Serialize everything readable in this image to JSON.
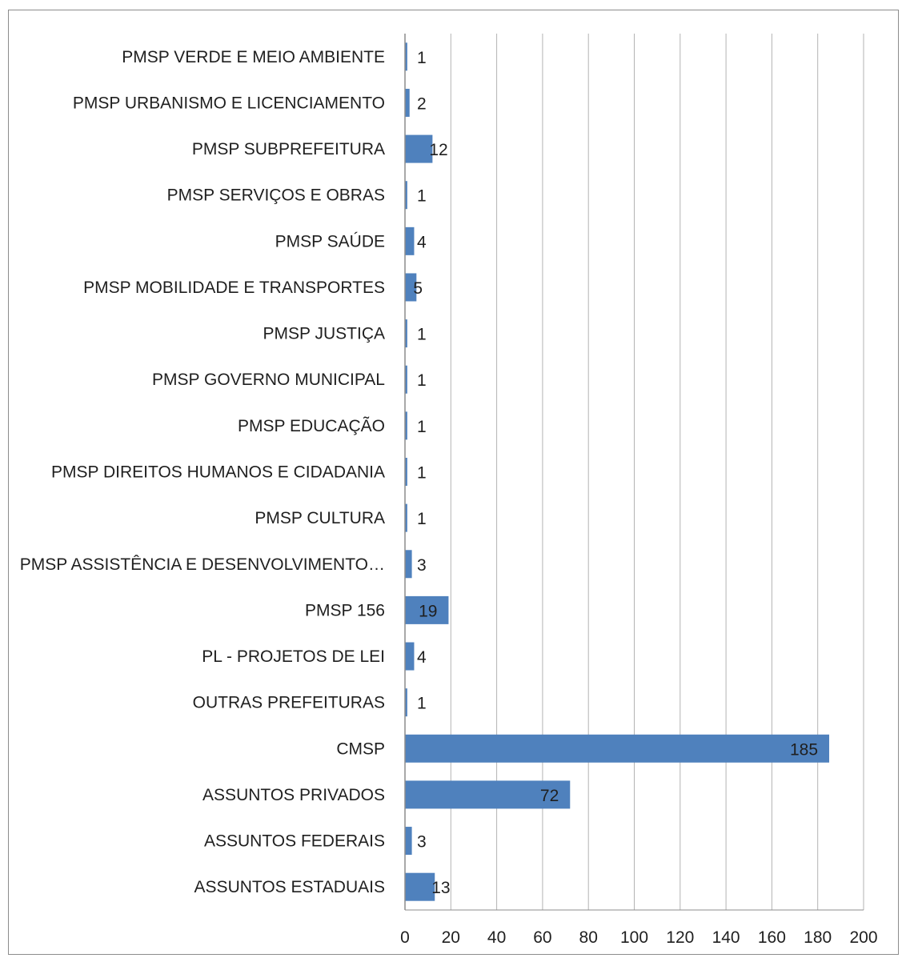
{
  "chart_data": {
    "type": "bar",
    "orientation": "horizontal",
    "categories": [
      "PMSP VERDE E MEIO AMBIENTE",
      "PMSP URBANISMO E LICENCIAMENTO",
      "PMSP SUBPREFEITURA",
      "PMSP SERVIÇOS E OBRAS",
      "PMSP SAÚDE",
      "PMSP MOBILIDADE E TRANSPORTES",
      "PMSP JUSTIÇA",
      "PMSP GOVERNO MUNICIPAL",
      "PMSP EDUCAÇÃO",
      "PMSP DIREITOS HUMANOS E CIDADANIA",
      "PMSP CULTURA",
      "PMSP ASSISTÊNCIA E DESENVOLVIMENTO…",
      "PMSP 156",
      "PL - PROJETOS DE LEI",
      "OUTRAS PREFEITURAS",
      "CMSP",
      "ASSUNTOS PRIVADOS",
      "ASSUNTOS FEDERAIS",
      "ASSUNTOS ESTADUAIS"
    ],
    "values": [
      1,
      2,
      12,
      1,
      4,
      5,
      1,
      1,
      1,
      1,
      1,
      3,
      19,
      4,
      1,
      185,
      72,
      3,
      13
    ],
    "data_labels": [
      "1",
      "2",
      "12",
      "1",
      "4",
      "5",
      "1",
      "1",
      "1",
      "1",
      "1",
      "3",
      "19",
      "4",
      "1",
      "185",
      "72",
      "3",
      "13"
    ],
    "xlim": [
      0,
      200
    ],
    "xticks": [
      "0",
      "20",
      "40",
      "60",
      "80",
      "100",
      "120",
      "140",
      "160",
      "180",
      "200"
    ],
    "title": "",
    "xlabel": "",
    "ylabel": "",
    "grid": "vertical",
    "legend": "none",
    "bar_color": "#4f81bd",
    "grid_color": "#b3b3b3",
    "axis_color": "#8c8c8c"
  }
}
